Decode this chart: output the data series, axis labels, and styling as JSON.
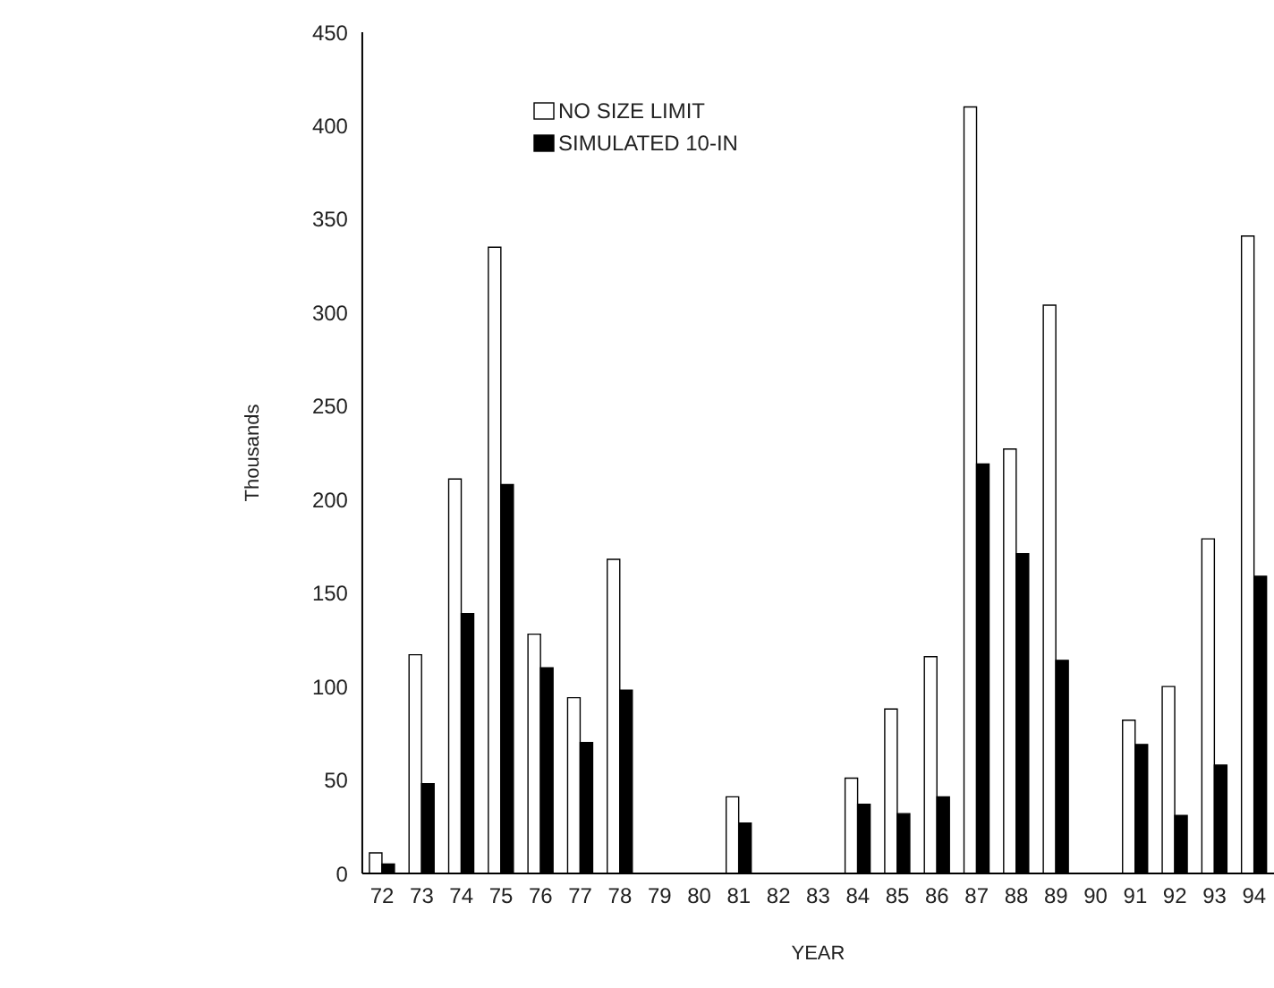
{
  "chart_data": {
    "type": "bar",
    "xlabel": "YEAR",
    "ylabel": "Thousands",
    "categories": [
      "72",
      "73",
      "74",
      "75",
      "76",
      "77",
      "78",
      "79",
      "80",
      "81",
      "82",
      "83",
      "84",
      "85",
      "86",
      "87",
      "88",
      "89",
      "90",
      "91",
      "92",
      "93",
      "94"
    ],
    "series": [
      {
        "name": "NO SIZE LIMIT",
        "color": "#ffffff",
        "values": [
          11,
          117,
          211,
          335,
          128,
          94,
          168,
          null,
          null,
          41,
          null,
          null,
          51,
          88,
          116,
          410,
          227,
          304,
          null,
          82,
          100,
          179,
          341
        ]
      },
      {
        "name": "SIMULATED 10-IN",
        "color": "#000000",
        "values": [
          5,
          48,
          139,
          208,
          110,
          70,
          98,
          null,
          null,
          27,
          null,
          null,
          37,
          32,
          41,
          219,
          171,
          114,
          null,
          69,
          31,
          58,
          159
        ]
      }
    ],
    "ylim": [
      0,
      450
    ],
    "yticks": [
      0,
      50,
      100,
      150,
      200,
      250,
      300,
      350,
      400,
      450
    ],
    "grid": false,
    "legend": "top left"
  }
}
